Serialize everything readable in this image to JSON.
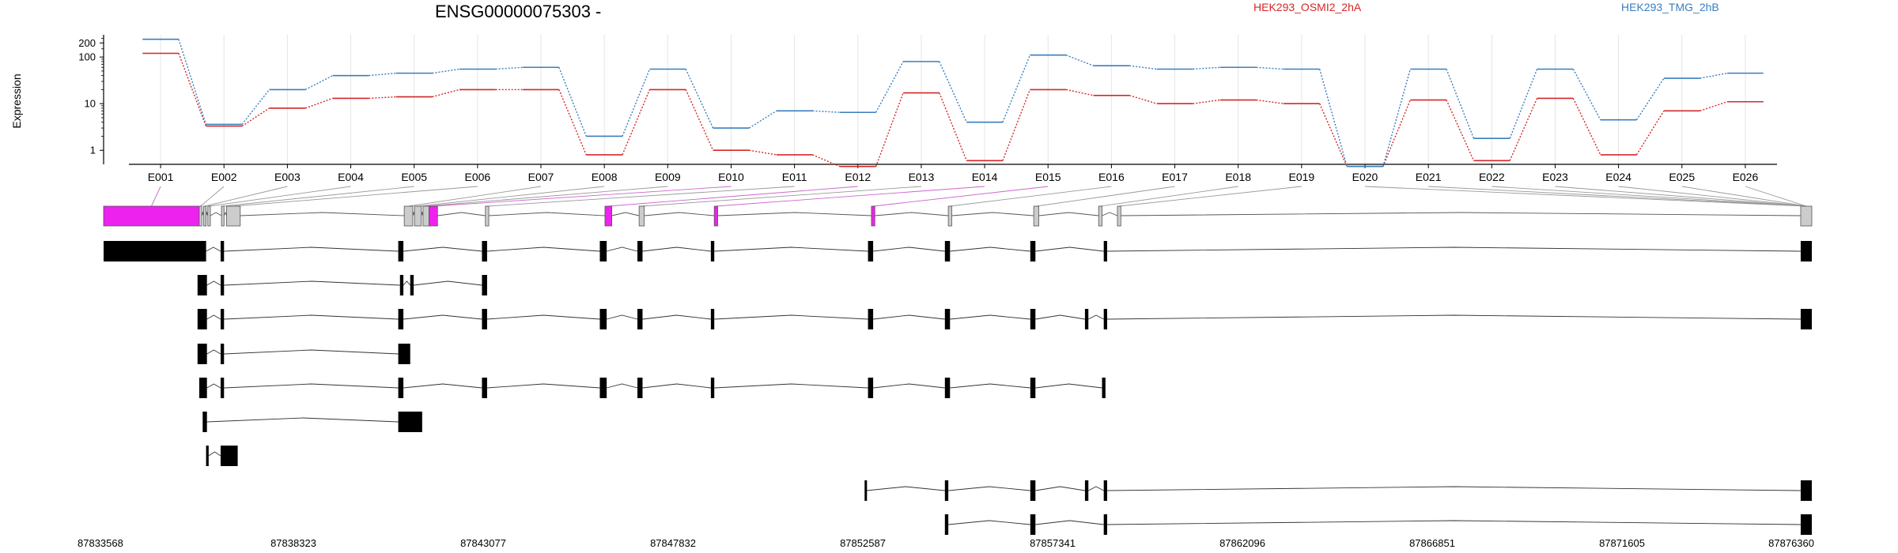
{
  "chart_data": {
    "type": "line",
    "title": "ENSG00000075303 -",
    "ylabel": "Expression",
    "yscale": "log",
    "ylim": [
      0.5,
      300
    ],
    "yticks": [
      1,
      10,
      100,
      200
    ],
    "grid": true,
    "legend_placement": "top-right",
    "categories": [
      "E001",
      "E002",
      "E003",
      "E004",
      "E005",
      "E006",
      "E007",
      "E008",
      "E009",
      "E010",
      "E011",
      "E012",
      "E013",
      "E014",
      "E015",
      "E016",
      "E017",
      "E018",
      "E019",
      "E020",
      "E021",
      "E022",
      "E023",
      "E024",
      "E025",
      "E026"
    ],
    "series": [
      {
        "name": "HEK293_OSMI2_2hA",
        "color": "#d62728",
        "values": [
          120,
          3.3,
          8,
          13,
          14,
          20,
          20,
          0.8,
          20,
          1,
          0.8,
          0.45,
          17,
          0.6,
          20,
          15,
          10,
          12,
          10,
          0.45,
          12,
          0.6,
          13,
          0.8,
          7,
          11
        ]
      },
      {
        "name": "HEK293_TMG_2hB",
        "color": "#3a7ebf",
        "values": [
          240,
          3.6,
          20,
          40,
          45,
          55,
          60,
          2,
          55,
          3,
          7,
          6.5,
          80,
          4,
          110,
          65,
          55,
          60,
          55,
          0.45,
          55,
          1.8,
          55,
          4.5,
          35,
          45
        ]
      }
    ],
    "highlight_color": "#ee22ee",
    "genomic_coordinates": [
      "87833568",
      "87838323",
      "87843077",
      "87847832",
      "87852587",
      "87857341",
      "87862096",
      "87866851",
      "87871605",
      "87876360"
    ]
  },
  "gene_model": {
    "exons": [
      {
        "s": 0.0,
        "e": 0.056,
        "hl": true
      },
      {
        "s": 0.056,
        "e": 0.0575,
        "hl": false
      },
      {
        "s": 0.0585,
        "e": 0.06,
        "hl": false
      },
      {
        "s": 0.061,
        "e": 0.0625,
        "hl": false
      },
      {
        "s": 0.069,
        "e": 0.0705,
        "hl": false
      },
      {
        "s": 0.072,
        "e": 0.08,
        "hl": false
      },
      {
        "s": 0.176,
        "e": 0.181,
        "hl": false
      },
      {
        "s": 0.182,
        "e": 0.186,
        "hl": false
      },
      {
        "s": 0.187,
        "e": 0.1905,
        "hl": false
      },
      {
        "s": 0.1905,
        "e": 0.1955,
        "hl": true
      },
      {
        "s": 0.2235,
        "e": 0.2255,
        "hl": false
      },
      {
        "s": 0.2935,
        "e": 0.2975,
        "hl": true
      },
      {
        "s": 0.3135,
        "e": 0.3165,
        "hl": false
      },
      {
        "s": 0.3575,
        "e": 0.3595,
        "hl": true
      },
      {
        "s": 0.4495,
        "e": 0.4515,
        "hl": true
      },
      {
        "s": 0.4945,
        "e": 0.4965,
        "hl": false
      },
      {
        "s": 0.5445,
        "e": 0.5475,
        "hl": false
      },
      {
        "s": 0.5825,
        "e": 0.5845,
        "hl": false
      },
      {
        "s": 0.5935,
        "e": 0.5955,
        "hl": false
      },
      {
        "s": 0.9935,
        "e": 1.0,
        "hl": false
      }
    ],
    "transcripts": [
      [
        [
          0.0,
          0.06
        ],
        [
          0.0685,
          0.0705
        ],
        [
          0.1725,
          0.1755
        ],
        [
          0.2215,
          0.2245
        ],
        [
          0.2905,
          0.2945
        ],
        [
          0.3125,
          0.3155
        ],
        [
          0.3555,
          0.3575
        ],
        [
          0.4475,
          0.4505
        ],
        [
          0.4925,
          0.4955
        ],
        [
          0.5425,
          0.5455
        ],
        [
          0.5855,
          0.5875
        ],
        [
          0.9935,
          1.0
        ]
      ],
      [
        [
          0.055,
          0.0605
        ],
        [
          0.0685,
          0.0705
        ],
        [
          0.1735,
          0.1755
        ],
        [
          0.1795,
          0.1815
        ],
        [
          0.2215,
          0.2245
        ]
      ],
      [
        [
          0.055,
          0.0605
        ],
        [
          0.0685,
          0.0705
        ],
        [
          0.1725,
          0.1755
        ],
        [
          0.2215,
          0.2245
        ],
        [
          0.2905,
          0.2945
        ],
        [
          0.3125,
          0.3155
        ],
        [
          0.3555,
          0.3575
        ],
        [
          0.4475,
          0.4505
        ],
        [
          0.4925,
          0.4955
        ],
        [
          0.5425,
          0.5455
        ],
        [
          0.5745,
          0.5765
        ],
        [
          0.5855,
          0.5875
        ],
        [
          0.9935,
          1.0
        ]
      ],
      [
        [
          0.055,
          0.0605
        ],
        [
          0.0685,
          0.0705
        ],
        [
          0.1725,
          0.1795
        ]
      ],
      [
        [
          0.056,
          0.0605
        ],
        [
          0.0685,
          0.0705
        ],
        [
          0.1725,
          0.1755
        ],
        [
          0.2215,
          0.2245
        ],
        [
          0.2905,
          0.2945
        ],
        [
          0.3125,
          0.3155
        ],
        [
          0.3555,
          0.3575
        ],
        [
          0.4475,
          0.4505
        ],
        [
          0.4925,
          0.4955
        ],
        [
          0.5425,
          0.5455
        ],
        [
          0.5845,
          0.5865
        ]
      ],
      [
        [
          0.058,
          0.0605
        ],
        [
          0.1725,
          0.1865
        ]
      ],
      [
        [
          0.06,
          0.0615
        ],
        [
          0.0685,
          0.0785
        ]
      ],
      [
        [
          0.4455,
          0.4465
        ],
        [
          0.4925,
          0.4945
        ],
        [
          0.5425,
          0.5455
        ],
        [
          0.5745,
          0.5765
        ],
        [
          0.5855,
          0.5875
        ],
        [
          0.9935,
          1.0
        ]
      ],
      [
        [
          0.4925,
          0.4945
        ],
        [
          0.5425,
          0.5455
        ],
        [
          0.5855,
          0.5875
        ],
        [
          0.9935,
          1.0
        ]
      ]
    ]
  }
}
